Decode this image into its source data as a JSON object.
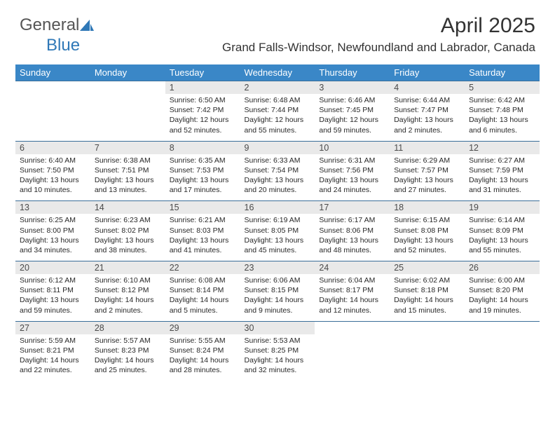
{
  "brand": {
    "part1": "General",
    "part2": "Blue"
  },
  "title": "April 2025",
  "location": "Grand Falls-Windsor, Newfoundland and Labrador, Canada",
  "colors": {
    "header_bg": "#3a87c7",
    "header_text": "#ffffff",
    "daynum_bg": "#e9e9e9",
    "rule": "#3a6e99",
    "text": "#202020",
    "logo_gray": "#555555",
    "logo_blue": "#2f78b7"
  },
  "days": [
    "Sunday",
    "Monday",
    "Tuesday",
    "Wednesday",
    "Thursday",
    "Friday",
    "Saturday"
  ],
  "weeks": [
    [
      null,
      null,
      {
        "n": "1",
        "sunrise": "6:50 AM",
        "sunset": "7:42 PM",
        "daylight": "12 hours and 52 minutes."
      },
      {
        "n": "2",
        "sunrise": "6:48 AM",
        "sunset": "7:44 PM",
        "daylight": "12 hours and 55 minutes."
      },
      {
        "n": "3",
        "sunrise": "6:46 AM",
        "sunset": "7:45 PM",
        "daylight": "12 hours and 59 minutes."
      },
      {
        "n": "4",
        "sunrise": "6:44 AM",
        "sunset": "7:47 PM",
        "daylight": "13 hours and 2 minutes."
      },
      {
        "n": "5",
        "sunrise": "6:42 AM",
        "sunset": "7:48 PM",
        "daylight": "13 hours and 6 minutes."
      }
    ],
    [
      {
        "n": "6",
        "sunrise": "6:40 AM",
        "sunset": "7:50 PM",
        "daylight": "13 hours and 10 minutes."
      },
      {
        "n": "7",
        "sunrise": "6:38 AM",
        "sunset": "7:51 PM",
        "daylight": "13 hours and 13 minutes."
      },
      {
        "n": "8",
        "sunrise": "6:35 AM",
        "sunset": "7:53 PM",
        "daylight": "13 hours and 17 minutes."
      },
      {
        "n": "9",
        "sunrise": "6:33 AM",
        "sunset": "7:54 PM",
        "daylight": "13 hours and 20 minutes."
      },
      {
        "n": "10",
        "sunrise": "6:31 AM",
        "sunset": "7:56 PM",
        "daylight": "13 hours and 24 minutes."
      },
      {
        "n": "11",
        "sunrise": "6:29 AM",
        "sunset": "7:57 PM",
        "daylight": "13 hours and 27 minutes."
      },
      {
        "n": "12",
        "sunrise": "6:27 AM",
        "sunset": "7:59 PM",
        "daylight": "13 hours and 31 minutes."
      }
    ],
    [
      {
        "n": "13",
        "sunrise": "6:25 AM",
        "sunset": "8:00 PM",
        "daylight": "13 hours and 34 minutes."
      },
      {
        "n": "14",
        "sunrise": "6:23 AM",
        "sunset": "8:02 PM",
        "daylight": "13 hours and 38 minutes."
      },
      {
        "n": "15",
        "sunrise": "6:21 AM",
        "sunset": "8:03 PM",
        "daylight": "13 hours and 41 minutes."
      },
      {
        "n": "16",
        "sunrise": "6:19 AM",
        "sunset": "8:05 PM",
        "daylight": "13 hours and 45 minutes."
      },
      {
        "n": "17",
        "sunrise": "6:17 AM",
        "sunset": "8:06 PM",
        "daylight": "13 hours and 48 minutes."
      },
      {
        "n": "18",
        "sunrise": "6:15 AM",
        "sunset": "8:08 PM",
        "daylight": "13 hours and 52 minutes."
      },
      {
        "n": "19",
        "sunrise": "6:14 AM",
        "sunset": "8:09 PM",
        "daylight": "13 hours and 55 minutes."
      }
    ],
    [
      {
        "n": "20",
        "sunrise": "6:12 AM",
        "sunset": "8:11 PM",
        "daylight": "13 hours and 59 minutes."
      },
      {
        "n": "21",
        "sunrise": "6:10 AM",
        "sunset": "8:12 PM",
        "daylight": "14 hours and 2 minutes."
      },
      {
        "n": "22",
        "sunrise": "6:08 AM",
        "sunset": "8:14 PM",
        "daylight": "14 hours and 5 minutes."
      },
      {
        "n": "23",
        "sunrise": "6:06 AM",
        "sunset": "8:15 PM",
        "daylight": "14 hours and 9 minutes."
      },
      {
        "n": "24",
        "sunrise": "6:04 AM",
        "sunset": "8:17 PM",
        "daylight": "14 hours and 12 minutes."
      },
      {
        "n": "25",
        "sunrise": "6:02 AM",
        "sunset": "8:18 PM",
        "daylight": "14 hours and 15 minutes."
      },
      {
        "n": "26",
        "sunrise": "6:00 AM",
        "sunset": "8:20 PM",
        "daylight": "14 hours and 19 minutes."
      }
    ],
    [
      {
        "n": "27",
        "sunrise": "5:59 AM",
        "sunset": "8:21 PM",
        "daylight": "14 hours and 22 minutes."
      },
      {
        "n": "28",
        "sunrise": "5:57 AM",
        "sunset": "8:23 PM",
        "daylight": "14 hours and 25 minutes."
      },
      {
        "n": "29",
        "sunrise": "5:55 AM",
        "sunset": "8:24 PM",
        "daylight": "14 hours and 28 minutes."
      },
      {
        "n": "30",
        "sunrise": "5:53 AM",
        "sunset": "8:25 PM",
        "daylight": "14 hours and 32 minutes."
      },
      null,
      null,
      null
    ]
  ],
  "labels": {
    "sunrise": "Sunrise: ",
    "sunset": "Sunset: ",
    "daylight": "Daylight: "
  }
}
